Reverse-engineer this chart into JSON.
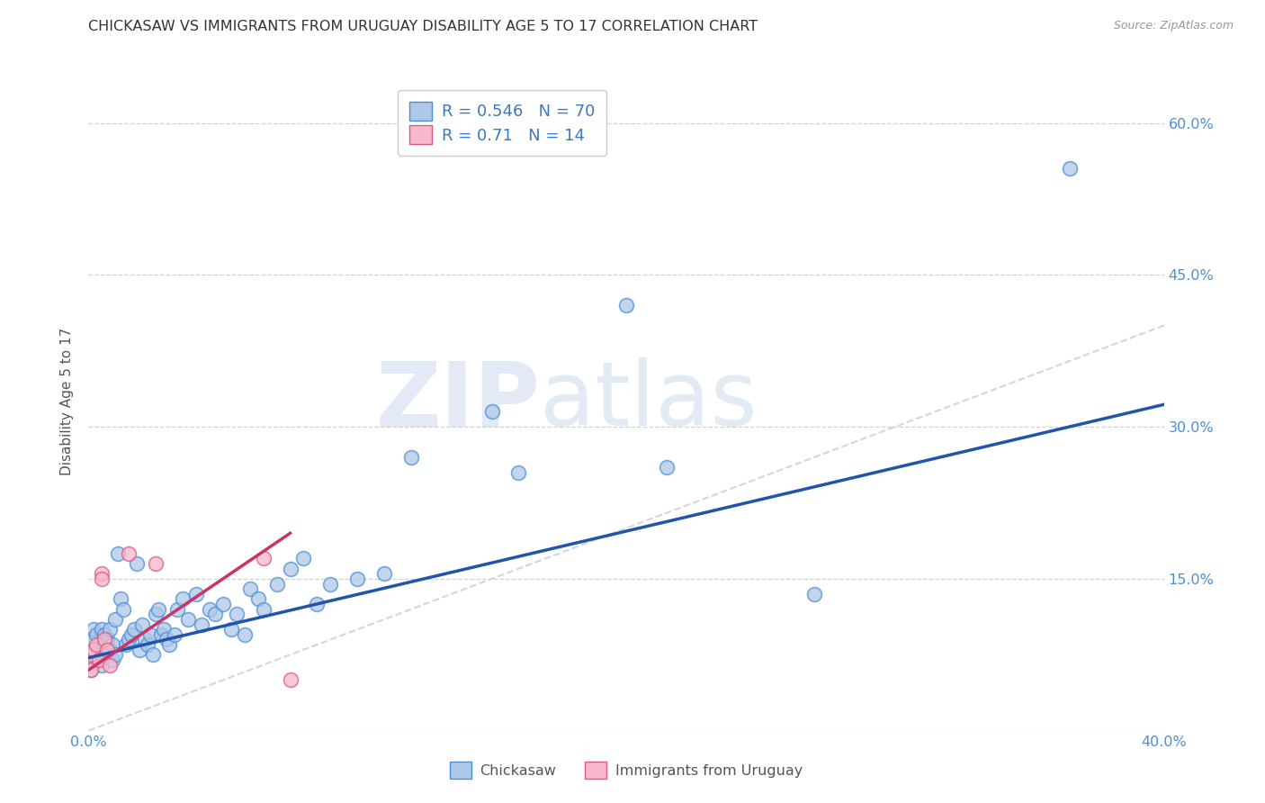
{
  "title": "CHICKASAW VS IMMIGRANTS FROM URUGUAY DISABILITY AGE 5 TO 17 CORRELATION CHART",
  "source": "Source: ZipAtlas.com",
  "ylabel": "Disability Age 5 to 17",
  "x_min": 0.0,
  "x_max": 0.4,
  "y_min": 0.0,
  "y_max": 0.65,
  "x_ticks": [
    0.0,
    0.1,
    0.2,
    0.3,
    0.4
  ],
  "x_tick_labels": [
    "0.0%",
    "",
    "",
    "",
    "40.0%"
  ],
  "y_ticks": [
    0.0,
    0.15,
    0.3,
    0.45,
    0.6
  ],
  "y_tick_labels": [
    "",
    "15.0%",
    "30.0%",
    "45.0%",
    "60.0%"
  ],
  "chickasaw_color": "#aec8e8",
  "chickasaw_edge_color": "#4a90d9",
  "uruguay_color": "#f7b8cb",
  "uruguay_edge_color": "#e05880",
  "trend_blue_color": "#2255aa",
  "trend_pink_color": "#cc3366",
  "diagonal_color": "#cccccc",
  "R_chickasaw": 0.546,
  "N_chickasaw": 70,
  "R_uruguay": 0.71,
  "N_uruguay": 14,
  "legend_label_1": "Chickasaw",
  "legend_label_2": "Immigrants from Uruguay",
  "watermark_zip": "ZIP",
  "watermark_atlas": "atlas",
  "chickasaw_x": [
    0.001,
    0.001,
    0.002,
    0.002,
    0.003,
    0.003,
    0.004,
    0.004,
    0.005,
    0.005,
    0.005,
    0.006,
    0.006,
    0.007,
    0.007,
    0.008,
    0.008,
    0.009,
    0.009,
    0.01,
    0.01,
    0.011,
    0.012,
    0.013,
    0.014,
    0.015,
    0.016,
    0.017,
    0.018,
    0.019,
    0.02,
    0.021,
    0.022,
    0.023,
    0.024,
    0.025,
    0.026,
    0.027,
    0.028,
    0.029,
    0.03,
    0.032,
    0.033,
    0.035,
    0.037,
    0.04,
    0.042,
    0.045,
    0.047,
    0.05,
    0.053,
    0.055,
    0.058,
    0.06,
    0.063,
    0.065,
    0.07,
    0.075,
    0.08,
    0.085,
    0.09,
    0.1,
    0.11,
    0.12,
    0.15,
    0.16,
    0.2,
    0.215,
    0.27,
    0.365
  ],
  "chickasaw_y": [
    0.09,
    0.06,
    0.08,
    0.1,
    0.07,
    0.095,
    0.085,
    0.075,
    0.08,
    0.065,
    0.1,
    0.085,
    0.095,
    0.075,
    0.09,
    0.08,
    0.1,
    0.085,
    0.07,
    0.075,
    0.11,
    0.175,
    0.13,
    0.12,
    0.085,
    0.09,
    0.095,
    0.1,
    0.165,
    0.08,
    0.105,
    0.09,
    0.085,
    0.095,
    0.075,
    0.115,
    0.12,
    0.095,
    0.1,
    0.09,
    0.085,
    0.095,
    0.12,
    0.13,
    0.11,
    0.135,
    0.105,
    0.12,
    0.115,
    0.125,
    0.1,
    0.115,
    0.095,
    0.14,
    0.13,
    0.12,
    0.145,
    0.16,
    0.17,
    0.125,
    0.145,
    0.15,
    0.155,
    0.27,
    0.315,
    0.255,
    0.42,
    0.26,
    0.135,
    0.555
  ],
  "uruguay_x": [
    0.001,
    0.001,
    0.002,
    0.003,
    0.004,
    0.005,
    0.005,
    0.006,
    0.007,
    0.008,
    0.015,
    0.025,
    0.065,
    0.075
  ],
  "uruguay_y": [
    0.075,
    0.06,
    0.08,
    0.085,
    0.07,
    0.155,
    0.15,
    0.09,
    0.08,
    0.065,
    0.175,
    0.165,
    0.17,
    0.05
  ],
  "trend_blue_x0": 0.0,
  "trend_blue_y0": 0.072,
  "trend_blue_x1": 0.4,
  "trend_blue_y1": 0.322,
  "trend_pink_x0": 0.0,
  "trend_pink_y0": 0.06,
  "trend_pink_x1": 0.075,
  "trend_pink_y1": 0.195
}
